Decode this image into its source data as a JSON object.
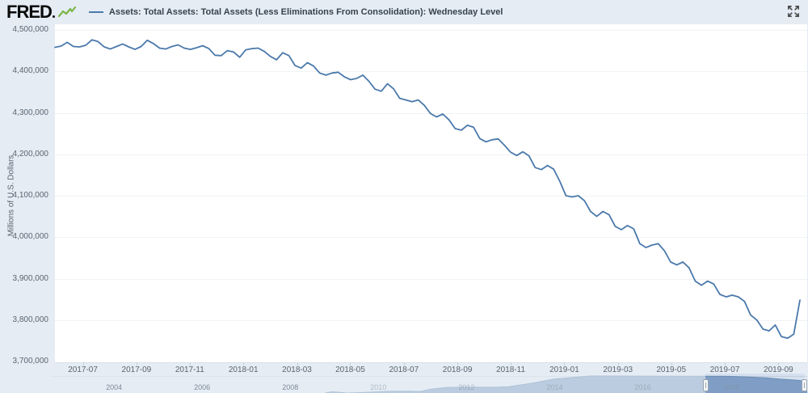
{
  "header": {
    "logo_text": "FRED",
    "legend_label": "Assets: Total Assets: Total Assets (Less Eliminations From Consolidation): Wednesday Level"
  },
  "colors": {
    "line": "#4b79ab",
    "page_bg": "#e5ecf4",
    "plot_bg": "#ffffff",
    "grid": "#f1f2f4",
    "nav_area_fill": "#7d9cc2",
    "nav_area_stroke": "#5e85af",
    "nav_mask": "rgba(229,236,244,0.6)",
    "nav_sel_tint": "rgba(145,170,210,0.18)",
    "logo_green": "#7ab648"
  },
  "chart_data": {
    "type": "line",
    "series_name": "Assets: Total Assets: Total Assets (Less Eliminations From Consolidation): Wednesday Level",
    "ylabel": "Millions of U.S. Dollars",
    "ylim": [
      3700000,
      4500000
    ],
    "grid": "horizontal only",
    "legend_position": "top",
    "yticks": [
      {
        "label": "4,500,000",
        "value": 4500000
      },
      {
        "label": "4,400,000",
        "value": 4400000
      },
      {
        "label": "4,300,000",
        "value": 4300000
      },
      {
        "label": "4,200,000",
        "value": 4200000
      },
      {
        "label": "4,100,000",
        "value": 4100000
      },
      {
        "label": "4,000,000",
        "value": 4000000
      },
      {
        "label": "3,900,000",
        "value": 3900000
      },
      {
        "label": "3,800,000",
        "value": 3800000
      },
      {
        "label": "3,700,000",
        "value": 3700000
      }
    ],
    "x_range_years": [
      2017.413,
      2019.734
    ],
    "xticks": [
      {
        "label": "2017-07",
        "year": 2017.5
      },
      {
        "label": "2017-09",
        "year": 2017.667
      },
      {
        "label": "2017-11",
        "year": 2017.833
      },
      {
        "label": "2018-01",
        "year": 2018.0
      },
      {
        "label": "2018-03",
        "year": 2018.167
      },
      {
        "label": "2018-05",
        "year": 2018.333
      },
      {
        "label": "2018-07",
        "year": 2018.5
      },
      {
        "label": "2018-09",
        "year": 2018.667
      },
      {
        "label": "2018-11",
        "year": 2018.833
      },
      {
        "label": "2019-01",
        "year": 2019.0
      },
      {
        "label": "2019-03",
        "year": 2019.167
      },
      {
        "label": "2019-05",
        "year": 2019.333
      },
      {
        "label": "2019-07",
        "year": 2019.5
      },
      {
        "label": "2019-09",
        "year": 2019.667
      }
    ],
    "frequency": "weekly",
    "values": [
      4458000,
      4461000,
      4470000,
      4460000,
      4459000,
      4463000,
      4476000,
      4472000,
      4459000,
      4454000,
      4460000,
      4466000,
      4459000,
      4453000,
      4460000,
      4475000,
      4467000,
      4456000,
      4454000,
      4460000,
      4464000,
      4456000,
      4453000,
      4457000,
      4462000,
      4455000,
      4439000,
      4438000,
      4450000,
      4447000,
      4434000,
      4452000,
      4455000,
      4456000,
      4448000,
      4436000,
      4428000,
      4445000,
      4438000,
      4414000,
      4408000,
      4421000,
      4413000,
      4396000,
      4391000,
      4396000,
      4398000,
      4387000,
      4380000,
      4383000,
      4391000,
      4376000,
      4357000,
      4352000,
      4370000,
      4358000,
      4335000,
      4331000,
      4327000,
      4331000,
      4318000,
      4298000,
      4290000,
      4297000,
      4283000,
      4262000,
      4258000,
      4270000,
      4265000,
      4238000,
      4230000,
      4235000,
      4237000,
      4222000,
      4205000,
      4197000,
      4206000,
      4196000,
      4168000,
      4163000,
      4173000,
      4164000,
      4135000,
      4100000,
      4097000,
      4100000,
      4088000,
      4062000,
      4050000,
      4062000,
      4054000,
      4026000,
      4018000,
      4028000,
      4020000,
      3984000,
      3975000,
      3981000,
      3984000,
      3967000,
      3940000,
      3933000,
      3940000,
      3926000,
      3894000,
      3884000,
      3894000,
      3887000,
      3862000,
      3856000,
      3860000,
      3856000,
      3845000,
      3812000,
      3800000,
      3778000,
      3774000,
      3788000,
      3760000,
      3756000,
      3766000,
      3848000
    ]
  },
  "navigator": {
    "year_range": [
      2002.55,
      2019.73
    ],
    "value_range": [
      0,
      4600000
    ],
    "selection": {
      "start_year": 2017.42,
      "end_year": 2019.7
    },
    "year_labels": [
      {
        "label": "2004",
        "year": 2004
      },
      {
        "label": "2006",
        "year": 2006
      },
      {
        "label": "2008",
        "year": 2008
      },
      {
        "label": "2010",
        "year": 2010
      },
      {
        "label": "2012",
        "year": 2012
      },
      {
        "label": "2014",
        "year": 2014
      },
      {
        "label": "2016",
        "year": 2016
      },
      {
        "label": "2018",
        "year": 2018
      }
    ],
    "series": [
      [
        2002.55,
        720000
      ],
      [
        2003.5,
        755000
      ],
      [
        2004.5,
        790000
      ],
      [
        2005.5,
        815000
      ],
      [
        2006.5,
        845000
      ],
      [
        2007.5,
        880000
      ],
      [
        2008.55,
        905000
      ],
      [
        2008.7,
        1450000
      ],
      [
        2008.8,
        2080000
      ],
      [
        2008.95,
        2240000
      ],
      [
        2009.3,
        2070000
      ],
      [
        2009.7,
        2150000
      ],
      [
        2010.2,
        2300000
      ],
      [
        2010.6,
        2330000
      ],
      [
        2010.95,
        2290000
      ],
      [
        2011.2,
        2610000
      ],
      [
        2011.55,
        2860000
      ],
      [
        2012.0,
        2920000
      ],
      [
        2012.6,
        2870000
      ],
      [
        2012.95,
        2960000
      ],
      [
        2013.5,
        3490000
      ],
      [
        2014.0,
        4070000
      ],
      [
        2014.8,
        4486000
      ],
      [
        2015.8,
        4470000
      ],
      [
        2016.8,
        4450000
      ],
      [
        2017.42,
        4465000
      ],
      [
        2017.95,
        4440000
      ],
      [
        2018.4,
        4350000
      ],
      [
        2018.8,
        4230000
      ],
      [
        2019.1,
        4060000
      ],
      [
        2019.35,
        3960000
      ],
      [
        2019.55,
        3850000
      ],
      [
        2019.64,
        3765000
      ],
      [
        2019.71,
        3848000
      ]
    ]
  }
}
